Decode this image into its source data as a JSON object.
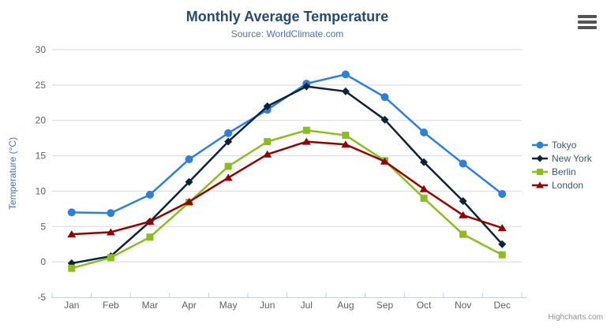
{
  "chart_data": {
    "type": "line",
    "title": "Monthly Average Temperature",
    "subtitle": "Source: WorldClimate.com",
    "xlabel": "",
    "ylabel": "Temperature (°C)",
    "categories": [
      "Jan",
      "Feb",
      "Mar",
      "Apr",
      "May",
      "Jun",
      "Jul",
      "Aug",
      "Sep",
      "Oct",
      "Nov",
      "Dec"
    ],
    "ylim": [
      -5,
      30
    ],
    "yticks": [
      -5,
      0,
      5,
      10,
      15,
      20,
      25,
      30
    ],
    "grid": true,
    "legend_position": "right",
    "series": [
      {
        "name": "Tokyo",
        "color": "#2f7ed8",
        "marker": "circle",
        "values": [
          7.0,
          6.9,
          9.5,
          14.5,
          18.2,
          21.5,
          25.2,
          26.5,
          23.3,
          18.3,
          13.9,
          9.6
        ]
      },
      {
        "name": "New York",
        "color": "#0d233a",
        "marker": "diamond",
        "values": [
          -0.2,
          0.8,
          5.7,
          11.3,
          17.0,
          22.0,
          24.8,
          24.1,
          20.1,
          14.1,
          8.6,
          2.5
        ]
      },
      {
        "name": "Berlin",
        "color": "#8bbc21",
        "marker": "square",
        "values": [
          -0.9,
          0.6,
          3.5,
          8.4,
          13.5,
          17.0,
          18.6,
          17.9,
          14.3,
          9.0,
          3.9,
          1.0
        ]
      },
      {
        "name": "London",
        "color": "#910000",
        "marker": "triangle",
        "values": [
          3.9,
          4.2,
          5.7,
          8.5,
          11.9,
          15.2,
          17.0,
          16.6,
          14.2,
          10.3,
          6.6,
          4.8
        ]
      }
    ],
    "colors": {
      "title": "#274b6d",
      "subtitle": "#4d759e",
      "axis_title": "#4d759e",
      "tick_label": "#606060",
      "legend_text": "#3e576f",
      "grid_line": "#d8d8d8",
      "axis_line": "#c0d0e0"
    }
  },
  "credits": {
    "label": "Highcharts.com"
  },
  "context_menu": {
    "icon": "hamburger-menu-icon"
  }
}
